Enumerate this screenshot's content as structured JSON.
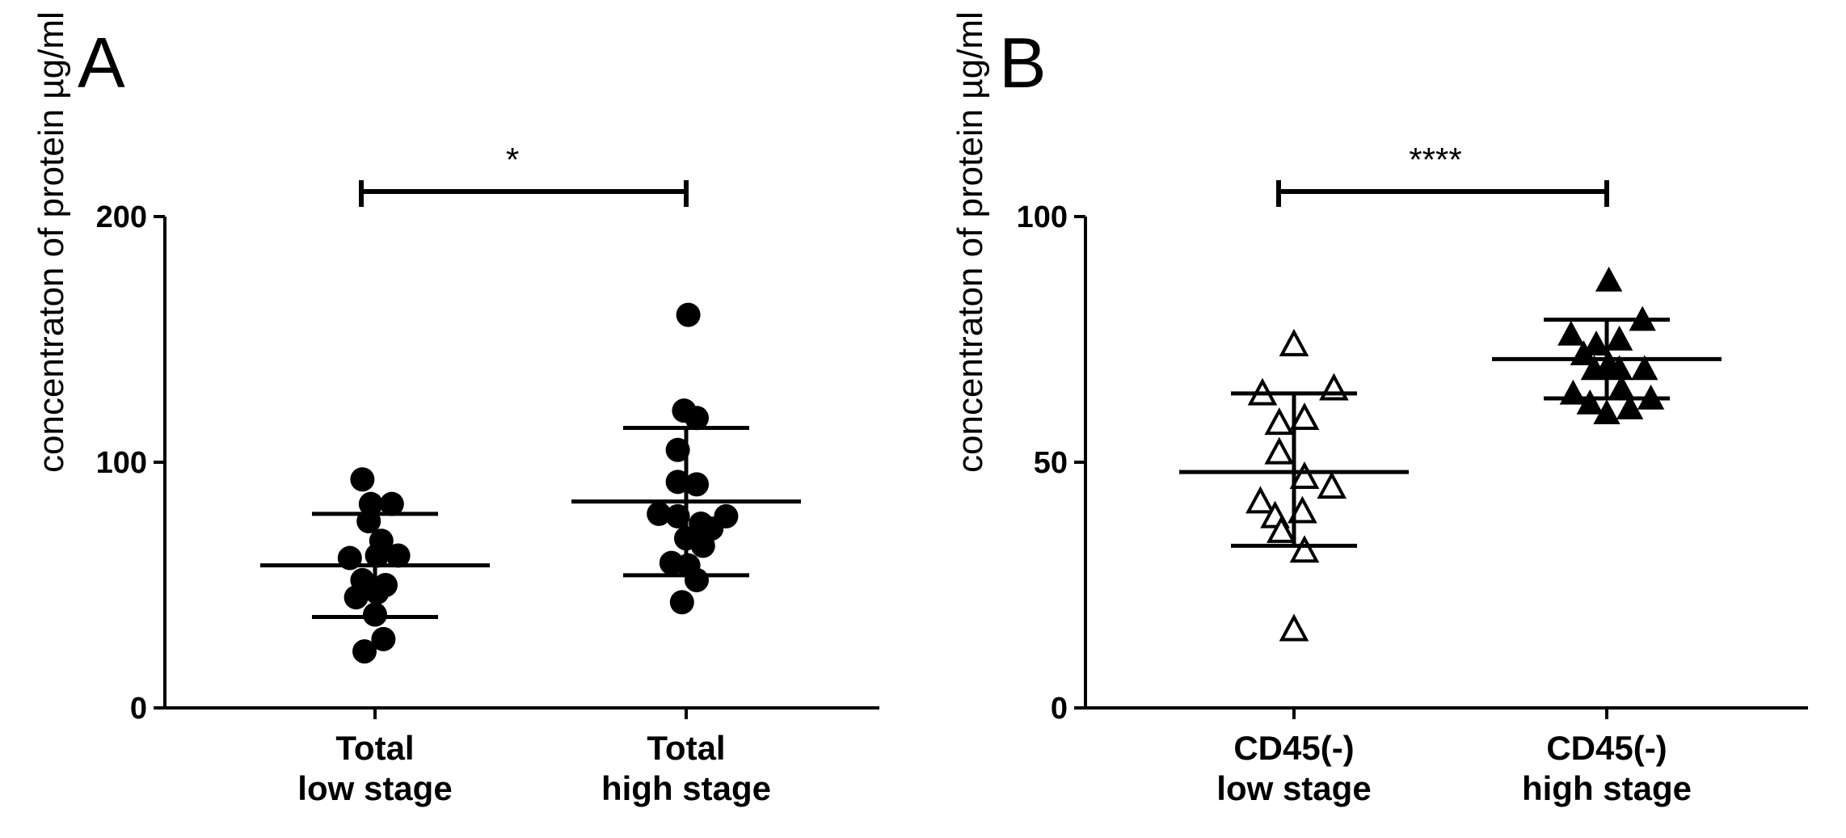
{
  "chart_data": [
    {
      "panel": "A",
      "type": "scatter",
      "ylabel": "concentraton of protein µg/ml",
      "ylim": [
        0,
        200
      ],
      "yticks": [
        0,
        100,
        200
      ],
      "marker": "filled-circle",
      "groups": [
        {
          "label_line1": "Total",
          "label_line2": "low stage",
          "mean": 58,
          "sd_upper": 79,
          "sd_lower": 37,
          "points": [
            {
              "x": -0.3,
              "y": 93
            },
            {
              "x": -0.1,
              "y": 83
            },
            {
              "x": 0.4,
              "y": 83
            },
            {
              "x": -0.15,
              "y": 76
            },
            {
              "x": 0.15,
              "y": 68
            },
            {
              "x": -0.6,
              "y": 61
            },
            {
              "x": 0.05,
              "y": 62
            },
            {
              "x": 0.55,
              "y": 62
            },
            {
              "x": -0.3,
              "y": 52
            },
            {
              "x": 0.25,
              "y": 50
            },
            {
              "x": -0.45,
              "y": 45
            },
            {
              "x": 0.05,
              "y": 47
            },
            {
              "x": 0.0,
              "y": 38
            },
            {
              "x": 0.2,
              "y": 28
            },
            {
              "x": -0.25,
              "y": 23
            }
          ]
        },
        {
          "label_line1": "Total",
          "label_line2": "high stage",
          "mean": 84,
          "sd_upper": 114,
          "sd_lower": 54,
          "points": [
            {
              "x": 0.05,
              "y": 160
            },
            {
              "x": -0.05,
              "y": 121
            },
            {
              "x": 0.25,
              "y": 118
            },
            {
              "x": -0.2,
              "y": 105
            },
            {
              "x": -0.2,
              "y": 92
            },
            {
              "x": 0.25,
              "y": 91
            },
            {
              "x": -0.65,
              "y": 79
            },
            {
              "x": -0.2,
              "y": 78
            },
            {
              "x": 0.95,
              "y": 78
            },
            {
              "x": 0.35,
              "y": 75
            },
            {
              "x": 0.6,
              "y": 73
            },
            {
              "x": 0.0,
              "y": 69
            },
            {
              "x": 0.4,
              "y": 66
            },
            {
              "x": -0.35,
              "y": 59
            },
            {
              "x": 0.05,
              "y": 58
            },
            {
              "x": 0.25,
              "y": 52
            },
            {
              "x": -0.1,
              "y": 43
            }
          ]
        }
      ],
      "significance": "*"
    },
    {
      "panel": "B",
      "type": "scatter",
      "ylabel": "concentraton of protein µg/ml",
      "ylim": [
        0,
        100
      ],
      "yticks": [
        0,
        50,
        100
      ],
      "groups": [
        {
          "label_line1": "CD45(-)",
          "label_line2": "low stage",
          "marker": "open-triangle",
          "mean": 48,
          "sd_upper": 64,
          "sd_lower": 33,
          "points": [
            {
              "x": 0.0,
              "y": 74
            },
            {
              "x": -0.75,
              "y": 64
            },
            {
              "x": 0.95,
              "y": 65
            },
            {
              "x": -0.35,
              "y": 58
            },
            {
              "x": 0.25,
              "y": 59
            },
            {
              "x": -0.35,
              "y": 52
            },
            {
              "x": 0.25,
              "y": 47
            },
            {
              "x": 0.9,
              "y": 45
            },
            {
              "x": -0.8,
              "y": 42
            },
            {
              "x": -0.45,
              "y": 39
            },
            {
              "x": 0.2,
              "y": 40
            },
            {
              "x": -0.3,
              "y": 36
            },
            {
              "x": 0.25,
              "y": 32
            },
            {
              "x": 0.0,
              "y": 16
            }
          ]
        },
        {
          "label_line1": "CD45(-)",
          "label_line2": "high stage",
          "marker": "filled-triangle",
          "mean": 71,
          "sd_upper": 79,
          "sd_lower": 63,
          "points": [
            {
              "x": 0.05,
              "y": 87
            },
            {
              "x": 0.85,
              "y": 79
            },
            {
              "x": -0.85,
              "y": 76
            },
            {
              "x": -0.25,
              "y": 74
            },
            {
              "x": 0.3,
              "y": 75
            },
            {
              "x": -0.55,
              "y": 72
            },
            {
              "x": 0.05,
              "y": 70
            },
            {
              "x": 0.3,
              "y": 69
            },
            {
              "x": -0.3,
              "y": 69
            },
            {
              "x": 0.9,
              "y": 69
            },
            {
              "x": -0.8,
              "y": 64
            },
            {
              "x": 0.35,
              "y": 65
            },
            {
              "x": -0.4,
              "y": 62
            },
            {
              "x": 1.05,
              "y": 63
            },
            {
              "x": 0.0,
              "y": 60
            },
            {
              "x": 0.55,
              "y": 61
            }
          ]
        }
      ],
      "significance": "****"
    }
  ]
}
